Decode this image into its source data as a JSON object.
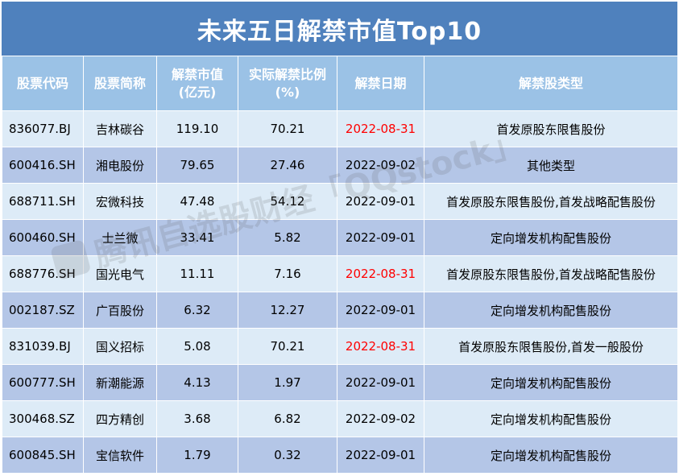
{
  "title": "未来五日解禁市值Top10",
  "headers": [
    [
      "股票代码"
    ],
    [
      "股票简称"
    ],
    [
      "解禁市值",
      "(亿元)"
    ],
    [
      "实际解禁比例",
      "(%)"
    ],
    [
      "解禁日期"
    ],
    [
      "解禁股类型"
    ]
  ],
  "rows": [
    {
      "code": "836077.BJ",
      "name": "吉林碳谷",
      "value": "119.10",
      "ratio": "70.21",
      "date": "2022-08-31",
      "type": "首发原股东限售股份"
    },
    {
      "code": "600416.SH",
      "name": "湘电股份",
      "value": "79.65",
      "ratio": "27.46",
      "date": "2022-09-02",
      "type": "其他类型"
    },
    {
      "code": "688711.SH",
      "name": "宏微科技",
      "value": "47.48",
      "ratio": "54.12",
      "date": "2022-09-01",
      "type": "首发原股东限售股份,首发战略配售股份"
    },
    {
      "code": "600460.SH",
      "name": "士兰微",
      "value": "33.41",
      "ratio": "5.82",
      "date": "2022-09-01",
      "type": "定向增发机构配售股份"
    },
    {
      "code": "688776.SH",
      "name": "国光电气",
      "value": "11.11",
      "ratio": "7.16",
      "date": "2022-08-31",
      "type": "首发原股东限售股份,首发战略配售股份"
    },
    {
      "code": "002187.SZ",
      "name": "广百股份",
      "value": "6.32",
      "ratio": "12.27",
      "date": "2022-09-01",
      "type": "定向增发机构配售股份"
    },
    {
      "code": "831039.BJ",
      "name": "国义招标",
      "value": "5.08",
      "ratio": "70.21",
      "date": "2022-08-31",
      "type": "首发原股东限售股份,首发一般股份"
    },
    {
      "code": "600777.SH",
      "name": "新潮能源",
      "value": "4.13",
      "ratio": "1.97",
      "date": "2022-09-01",
      "type": "定向增发机构配售股份"
    },
    {
      "code": "300468.SZ",
      "name": "四方精创",
      "value": "3.68",
      "ratio": "6.82",
      "date": "2022-09-02",
      "type": "定向增发机构配售股份"
    },
    {
      "code": "600845.SH",
      "name": "宝信软件",
      "value": "1.79",
      "ratio": "0.32",
      "date": "2022-09-01",
      "type": "定向增发机构配售股份"
    }
  ],
  "highlight_date": "2022-08-31",
  "watermark": "腾讯自选股财经「QQstock」",
  "colors": {
    "title_bg": "#4f81bd",
    "header_bg": "#9bc2e6",
    "row_light": "#ddebf7",
    "row_dark": "#b4c6e7",
    "highlight_text": "#ff0000"
  }
}
